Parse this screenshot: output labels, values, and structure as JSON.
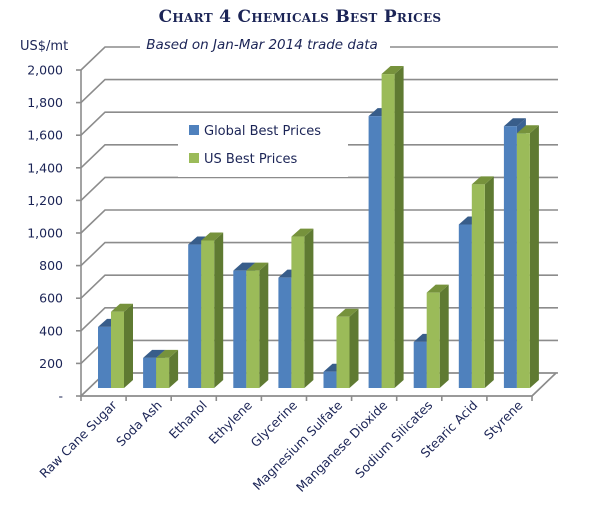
{
  "chart_data": {
    "type": "bar",
    "style": "3d-clustered-column",
    "title": "Chart 4 Chemicals Best Prices",
    "subtitle": "Based on Jan-Mar 2014 trade data",
    "ylabel": "US$/mt",
    "xlabel": "",
    "ylim": [
      0,
      2000
    ],
    "ytick_step": 200,
    "ytick_labels": [
      "-",
      "200",
      "400",
      "600",
      "800",
      "1,000",
      "1,200",
      "1,400",
      "1,600",
      "1,800",
      "2,000"
    ],
    "grid": true,
    "legend_position": "top-left-inside",
    "categories": [
      "Raw Cane Sugar",
      "Soda Ash",
      "Ethanol",
      "Ethylene",
      "Glycerine",
      "Magnesium Sulfate",
      "Manganese Dioxide",
      "Sodium Silicates",
      "Stearic Acid",
      "Styrene"
    ],
    "series": [
      {
        "name": "Global Best Prices",
        "color": "#4f81bd",
        "top_color": "#385d8a",
        "side_color": "#3a6294",
        "values": [
          375,
          185,
          880,
          720,
          677,
          100,
          1668,
          283,
          1003,
          1606
        ]
      },
      {
        "name": "US Best Prices",
        "color": "#9bbb59",
        "top_color": "#76923c",
        "side_color": "#5f7a32",
        "values": [
          468,
          185,
          905,
          720,
          929,
          437,
          1926,
          585,
          1249,
          1563
        ]
      }
    ]
  }
}
